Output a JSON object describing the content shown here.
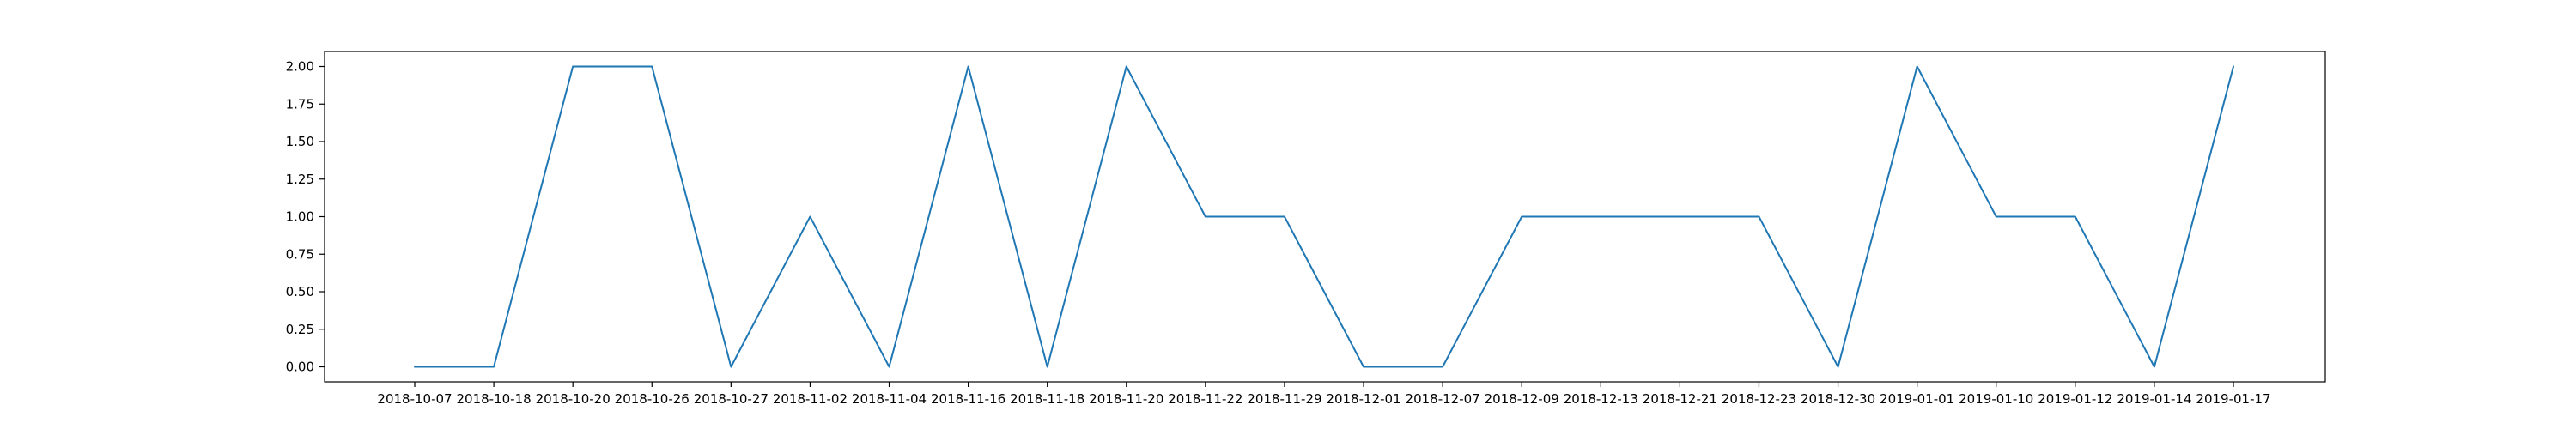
{
  "chart_data": {
    "type": "line",
    "title": "",
    "xlabel": "",
    "ylabel": "",
    "x": [
      "2018-10-07",
      "2018-10-18",
      "2018-10-20",
      "2018-10-26",
      "2018-10-27",
      "2018-11-02",
      "2018-11-04",
      "2018-11-16",
      "2018-11-18",
      "2018-11-20",
      "2018-11-22",
      "2018-11-29",
      "2018-12-01",
      "2018-12-07",
      "2018-12-09",
      "2018-12-13",
      "2018-12-21",
      "2018-12-23",
      "2018-12-30",
      "2019-01-01",
      "2019-01-10",
      "2019-01-12",
      "2019-01-14",
      "2019-01-17"
    ],
    "series": [
      {
        "values": [
          0,
          0,
          2,
          2,
          0,
          1,
          0,
          2,
          0,
          2,
          1,
          1,
          0,
          0,
          1,
          1,
          1,
          1,
          0,
          2,
          1,
          1,
          0,
          2
        ],
        "color": "#1f77b4"
      }
    ],
    "ylim": [
      -0.1,
      2.1
    ],
    "yticks": [
      0.0,
      0.25,
      0.5,
      0.75,
      1.0,
      1.25,
      1.5,
      1.75,
      2.0
    ],
    "ytick_labels": [
      "0.00",
      "0.25",
      "0.50",
      "0.75",
      "1.00",
      "1.25",
      "1.50",
      "1.75",
      "2.00"
    ],
    "grid": false,
    "legend": "none"
  }
}
